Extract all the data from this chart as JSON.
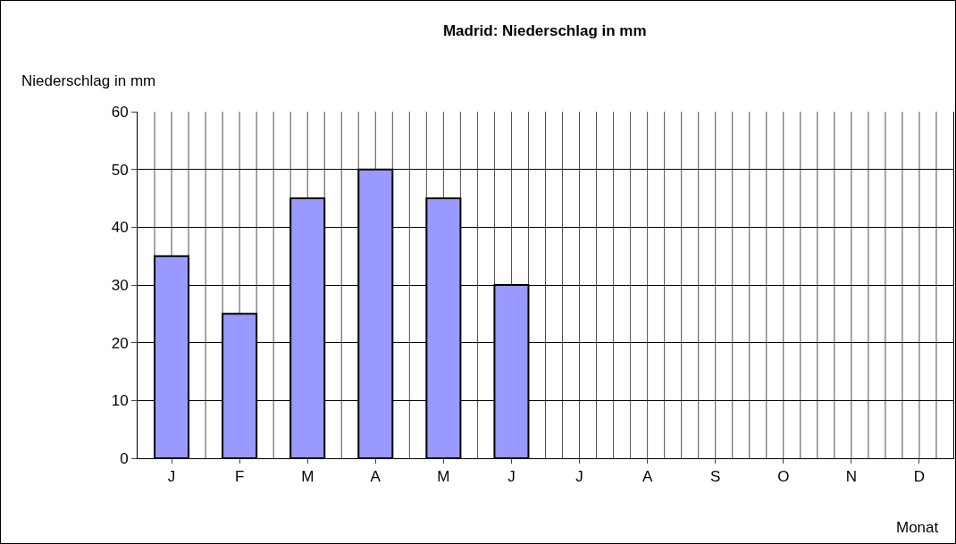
{
  "chart_data": {
    "type": "bar",
    "title": "Madrid: Niederschlag in mm",
    "xlabel": "Monat",
    "ylabel": "Niederschlag in mm",
    "categories": [
      "J",
      "F",
      "M",
      "A",
      "M",
      "J",
      "J",
      "A",
      "S",
      "O",
      "N",
      "D"
    ],
    "values": [
      35,
      25,
      45,
      50,
      45,
      30,
      null,
      null,
      null,
      null,
      null,
      null
    ],
    "color": "#9999ff",
    "ylim": [
      0,
      60
    ],
    "yticks": [
      0,
      10,
      20,
      30,
      40,
      50,
      60
    ],
    "grid": true
  }
}
